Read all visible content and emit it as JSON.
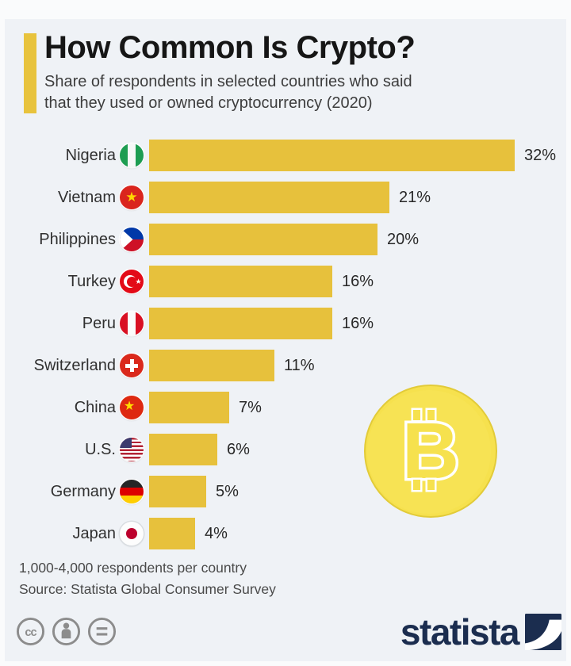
{
  "chart_data": {
    "type": "bar",
    "orientation": "horizontal",
    "title": "How Common Is Crypto?",
    "subtitle": "Share of respondents in selected countries who said\nthat they used or owned cryptocurrency (2020)",
    "value_unit": "%",
    "xlim": [
      0,
      32
    ],
    "grid": false,
    "legend": false,
    "bar_color": "#E7C13C",
    "categories": [
      "Nigeria",
      "Vietnam",
      "Philippines",
      "Turkey",
      "Peru",
      "Switzerland",
      "China",
      "U.S.",
      "Germany",
      "Japan"
    ],
    "values": [
      32,
      21,
      20,
      16,
      16,
      11,
      7,
      6,
      5,
      4
    ],
    "items": [
      {
        "label": "Nigeria",
        "flag": "nigeria",
        "value": 32,
        "display": "32%"
      },
      {
        "label": "Vietnam",
        "flag": "vietnam",
        "value": 21,
        "display": "21%"
      },
      {
        "label": "Philippines",
        "flag": "philippines",
        "value": 20,
        "display": "20%"
      },
      {
        "label": "Turkey",
        "flag": "turkey",
        "value": 16,
        "display": "16%"
      },
      {
        "label": "Peru",
        "flag": "peru",
        "value": 16,
        "display": "16%"
      },
      {
        "label": "Switzerland",
        "flag": "switzerland",
        "value": 11,
        "display": "11%"
      },
      {
        "label": "China",
        "flag": "china",
        "value": 7,
        "display": "7%"
      },
      {
        "label": "U.S.",
        "flag": "us",
        "value": 6,
        "display": "6%"
      },
      {
        "label": "Germany",
        "flag": "germany",
        "value": 5,
        "display": "5%"
      },
      {
        "label": "Japan",
        "flag": "japan",
        "value": 4,
        "display": "4%"
      }
    ]
  },
  "footer": {
    "note": "1,000-4,000 respondents per country",
    "source": "Source: Statista Global Consumer Survey"
  },
  "branding": {
    "logo_text": "statista",
    "license_icons": [
      "cc",
      "attribution",
      "no-derivatives"
    ]
  },
  "colors": {
    "background": "#EFF2F6",
    "page_edge": "#FAFBFC",
    "accent_yellow": "#E8C33D",
    "coin_yellow": "#F6E14E",
    "navy": "#1B2D4F",
    "icon_gray": "#8C8C8C"
  }
}
